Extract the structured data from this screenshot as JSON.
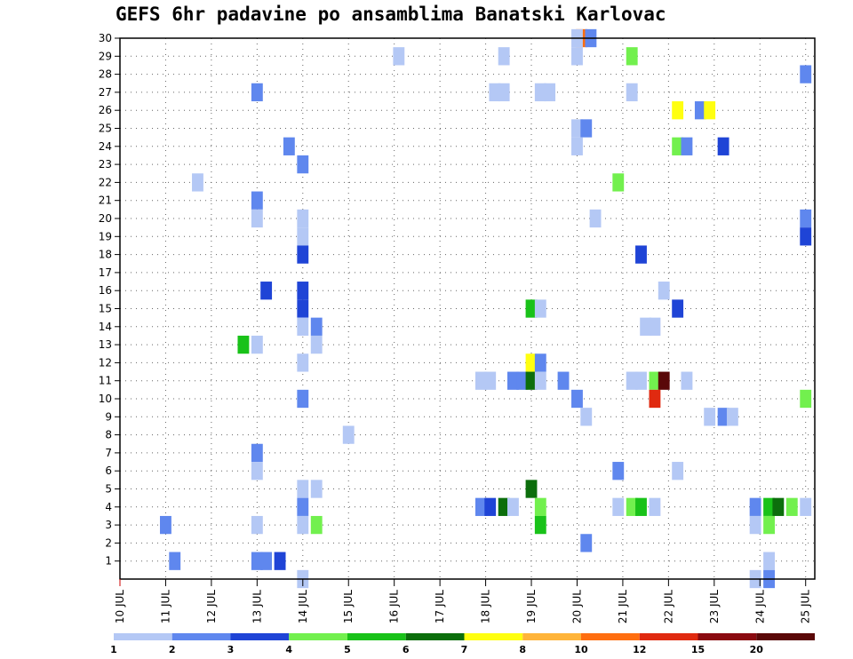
{
  "chart_data": {
    "type": "heatmap",
    "title": "GEFS 6hr padavine po ansamblima Banatski Karlovac",
    "x_tick_labels": [
      "10 JUL",
      "11 JUL",
      "12 JUL",
      "13 JUL",
      "14 JUL",
      "15 JUL",
      "16 JUL",
      "17 JUL",
      "18 JUL",
      "19 JUL",
      "20 JUL",
      "21 JUL",
      "22 JUL",
      "23 JUL",
      "24 JUL",
      "25 JUL"
    ],
    "x_range_days": [
      0,
      15.2
    ],
    "y_tick_labels": [
      "1",
      "2",
      "3",
      "4",
      "5",
      "6",
      "7",
      "8",
      "9",
      "10",
      "11",
      "12",
      "13",
      "14",
      "15",
      "16",
      "17",
      "18",
      "19",
      "20",
      "21",
      "22",
      "23",
      "24",
      "25",
      "26",
      "27",
      "28",
      "29",
      "30"
    ],
    "y_range": [
      0,
      30
    ],
    "grid": "dotted",
    "legend": {
      "position": "bottom",
      "colors": [
        "#b4c8f5",
        "#5f87ee",
        "#1f44d6",
        "#72f04e",
        "#19c219",
        "#0c6e0c",
        "#ffff10",
        "#ffb43a",
        "#ff6e10",
        "#e02a10",
        "#8a0a10",
        "#5a0808"
      ],
      "labels": [
        "1",
        "2",
        "3",
        "4",
        "5",
        "6",
        "7",
        "8",
        "10",
        "12",
        "15",
        "20"
      ],
      "label_boundaries": [
        0,
        1,
        2,
        3,
        4,
        5,
        6,
        7,
        8,
        9,
        10,
        11
      ]
    },
    "cells_day_member_class": [
      [
        10.1,
        30,
        9
      ],
      [
        10.3,
        30,
        2
      ],
      [
        10.0,
        30,
        1
      ],
      [
        6.1,
        29,
        1
      ],
      [
        8.4,
        29,
        1
      ],
      [
        10.0,
        29,
        1
      ],
      [
        11.2,
        29,
        4
      ],
      [
        15.0,
        28,
        2
      ],
      [
        3.0,
        27,
        2
      ],
      [
        8.2,
        27,
        1
      ],
      [
        8.4,
        27,
        1
      ],
      [
        9.2,
        27,
        1
      ],
      [
        9.4,
        27,
        1
      ],
      [
        11.2,
        27,
        1
      ],
      [
        12.2,
        26,
        7
      ],
      [
        12.7,
        26,
        2
      ],
      [
        12.9,
        26,
        7
      ],
      [
        10.0,
        25,
        1
      ],
      [
        10.2,
        25,
        2
      ],
      [
        3.7,
        24,
        2
      ],
      [
        10.0,
        24,
        1
      ],
      [
        12.2,
        24,
        4
      ],
      [
        12.4,
        24,
        2
      ],
      [
        13.2,
        24,
        3
      ],
      [
        4.0,
        23,
        2
      ],
      [
        1.7,
        22,
        1
      ],
      [
        10.9,
        22,
        4
      ],
      [
        3.0,
        21,
        2
      ],
      [
        3.0,
        20,
        1
      ],
      [
        4.0,
        20,
        1
      ],
      [
        10.4,
        20,
        1
      ],
      [
        15.0,
        20,
        2
      ],
      [
        4.0,
        19,
        1
      ],
      [
        15.0,
        19,
        3
      ],
      [
        4.0,
        18,
        3
      ],
      [
        11.4,
        18,
        3
      ],
      [
        3.2,
        16,
        3
      ],
      [
        4.0,
        16,
        3
      ],
      [
        11.9,
        16,
        1
      ],
      [
        4.0,
        15,
        3
      ],
      [
        9.0,
        15,
        5
      ],
      [
        9.2,
        15,
        1
      ],
      [
        12.2,
        15,
        3
      ],
      [
        4.0,
        14,
        1
      ],
      [
        4.3,
        14,
        2
      ],
      [
        11.5,
        14,
        1
      ],
      [
        11.7,
        14,
        1
      ],
      [
        2.7,
        13,
        5
      ],
      [
        3.0,
        13,
        1
      ],
      [
        4.3,
        13,
        1
      ],
      [
        9.0,
        12,
        7
      ],
      [
        9.2,
        12,
        2
      ],
      [
        4.0,
        12,
        1
      ],
      [
        7.9,
        11,
        1
      ],
      [
        8.1,
        11,
        1
      ],
      [
        8.6,
        11,
        2
      ],
      [
        8.8,
        11,
        2
      ],
      [
        9.0,
        11,
        6
      ],
      [
        9.2,
        11,
        1
      ],
      [
        9.7,
        11,
        2
      ],
      [
        11.2,
        11,
        1
      ],
      [
        11.4,
        11,
        1
      ],
      [
        11.7,
        11,
        4
      ],
      [
        11.9,
        11,
        12
      ],
      [
        12.4,
        11,
        1
      ],
      [
        4.0,
        10,
        2
      ],
      [
        10.0,
        10,
        2
      ],
      [
        11.7,
        10,
        10
      ],
      [
        15.0,
        10,
        4
      ],
      [
        10.2,
        9,
        1
      ],
      [
        12.9,
        9,
        1
      ],
      [
        13.2,
        9,
        2
      ],
      [
        13.4,
        9,
        1
      ],
      [
        5.0,
        8,
        1
      ],
      [
        3.0,
        7,
        2
      ],
      [
        3.0,
        6,
        1
      ],
      [
        10.9,
        6,
        2
      ],
      [
        12.2,
        6,
        1
      ],
      [
        4.0,
        5,
        1
      ],
      [
        4.3,
        5,
        1
      ],
      [
        9.0,
        5,
        6
      ],
      [
        4.0,
        4,
        2
      ],
      [
        7.9,
        4,
        2
      ],
      [
        8.1,
        4,
        3
      ],
      [
        8.4,
        4,
        6
      ],
      [
        8.6,
        4,
        1
      ],
      [
        9.2,
        4,
        4
      ],
      [
        10.9,
        4,
        1
      ],
      [
        11.2,
        4,
        4
      ],
      [
        11.4,
        4,
        5
      ],
      [
        11.7,
        4,
        1
      ],
      [
        13.9,
        4,
        2
      ],
      [
        14.2,
        4,
        5
      ],
      [
        14.4,
        4,
        6
      ],
      [
        14.7,
        4,
        4
      ],
      [
        15.0,
        4,
        1
      ],
      [
        1.0,
        3,
        2
      ],
      [
        3.0,
        3,
        1
      ],
      [
        4.0,
        3,
        1
      ],
      [
        4.3,
        3,
        4
      ],
      [
        9.2,
        3,
        5
      ],
      [
        13.9,
        3,
        1
      ],
      [
        14.2,
        3,
        4
      ],
      [
        10.2,
        2,
        2
      ],
      [
        1.2,
        1,
        2
      ],
      [
        3.0,
        1,
        2
      ],
      [
        3.2,
        1,
        2
      ],
      [
        3.5,
        1,
        3
      ],
      [
        14.2,
        1,
        1
      ],
      [
        4.0,
        0,
        1
      ],
      [
        13.9,
        0,
        1
      ],
      [
        14.2,
        0,
        2
      ]
    ]
  }
}
